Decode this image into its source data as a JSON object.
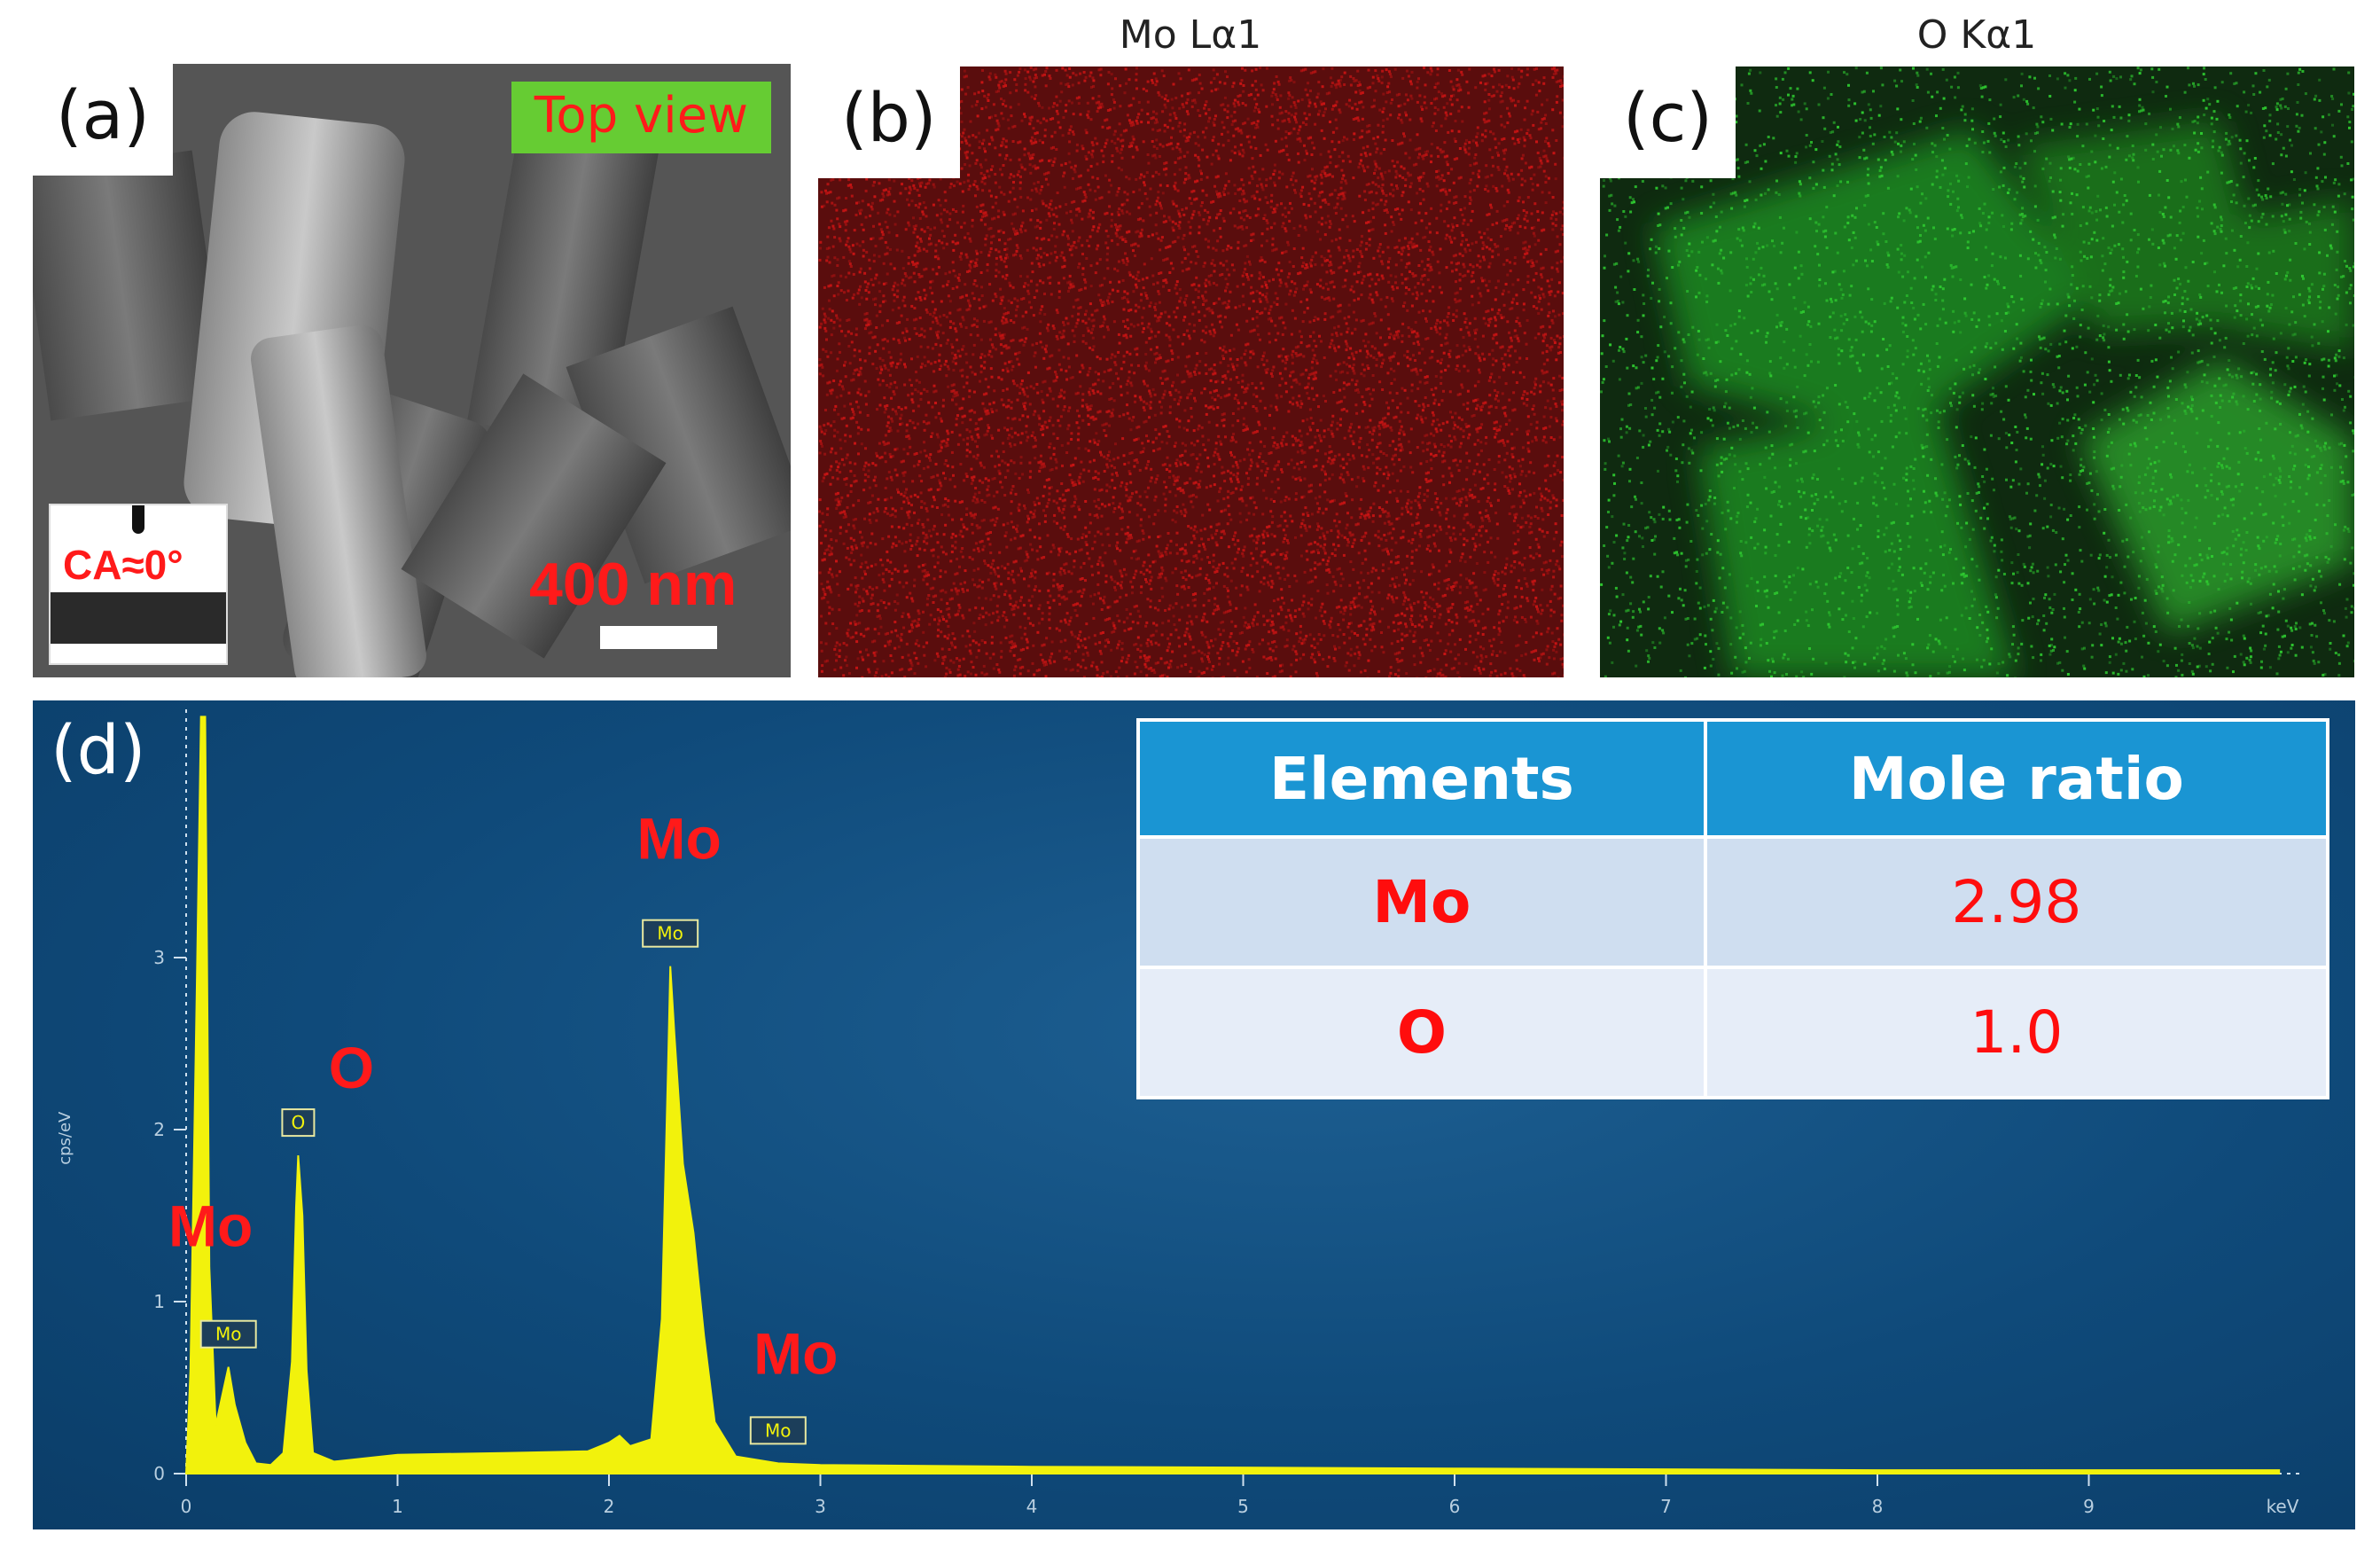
{
  "panels": {
    "a": {
      "letter": "(a)",
      "badge": "Top view",
      "inset_label": "CA≈0°",
      "scale_label": "400 nm"
    },
    "b": {
      "letter": "(b)",
      "title": "Mo Lα1",
      "map_color": "#c81414"
    },
    "c": {
      "letter": "(c)",
      "title": "O Kα1",
      "map_color": "#2ec830"
    },
    "d": {
      "letter": "(d)"
    }
  },
  "table": {
    "headers": [
      "Elements",
      "Mole ratio"
    ],
    "rows": [
      {
        "element": "Mo",
        "ratio": "2.98"
      },
      {
        "element": "O",
        "ratio": "1.0"
      }
    ]
  },
  "chart_data": {
    "type": "line",
    "title": "",
    "xlabel": "keV",
    "ylabel": "cps/eV",
    "xlim": [
      0,
      10
    ],
    "ylim": [
      0,
      4.4
    ],
    "x_ticks": [
      "0",
      "1",
      "2",
      "3",
      "4",
      "5",
      "6",
      "7",
      "8",
      "9"
    ],
    "y_ticks": [
      "0",
      "1",
      "2",
      "3"
    ],
    "colors": {
      "spectrum": "#f2f20c",
      "peak_label": "#ff1a1a",
      "background": "#0f4a7a"
    },
    "spectrum": [
      [
        0.0,
        0.0
      ],
      [
        0.02,
        0.6
      ],
      [
        0.05,
        2.8
      ],
      [
        0.07,
        4.4
      ],
      [
        0.09,
        4.4
      ],
      [
        0.11,
        1.2
      ],
      [
        0.14,
        0.28
      ],
      [
        0.17,
        0.45
      ],
      [
        0.2,
        0.62
      ],
      [
        0.23,
        0.4
      ],
      [
        0.28,
        0.18
      ],
      [
        0.33,
        0.06
      ],
      [
        0.4,
        0.05
      ],
      [
        0.46,
        0.12
      ],
      [
        0.5,
        0.65
      ],
      [
        0.52,
        1.55
      ],
      [
        0.53,
        1.85
      ],
      [
        0.55,
        1.5
      ],
      [
        0.57,
        0.6
      ],
      [
        0.6,
        0.12
      ],
      [
        0.7,
        0.07
      ],
      [
        1.0,
        0.11
      ],
      [
        1.5,
        0.12
      ],
      [
        1.9,
        0.13
      ],
      [
        2.0,
        0.18
      ],
      [
        2.05,
        0.22
      ],
      [
        2.1,
        0.16
      ],
      [
        2.2,
        0.2
      ],
      [
        2.25,
        0.9
      ],
      [
        2.28,
        2.4
      ],
      [
        2.29,
        2.95
      ],
      [
        2.31,
        2.55
      ],
      [
        2.35,
        1.8
      ],
      [
        2.4,
        1.4
      ],
      [
        2.45,
        0.8
      ],
      [
        2.5,
        0.3
      ],
      [
        2.6,
        0.1
      ],
      [
        2.8,
        0.06
      ],
      [
        3.0,
        0.05
      ],
      [
        4.0,
        0.04
      ],
      [
        6.0,
        0.03
      ],
      [
        8.0,
        0.02
      ],
      [
        9.9,
        0.02
      ]
    ],
    "peaks": [
      {
        "element": "Mo",
        "box": "Mo",
        "x": 0.2,
        "y": 0.62
      },
      {
        "element": "O",
        "box": "O",
        "x": 0.53,
        "y": 1.85
      },
      {
        "element": "Mo",
        "box": "Mo",
        "x": 2.29,
        "y": 2.95
      },
      {
        "element": "Mo",
        "box": "Mo",
        "x": 2.8,
        "y": 0.06
      }
    ]
  }
}
